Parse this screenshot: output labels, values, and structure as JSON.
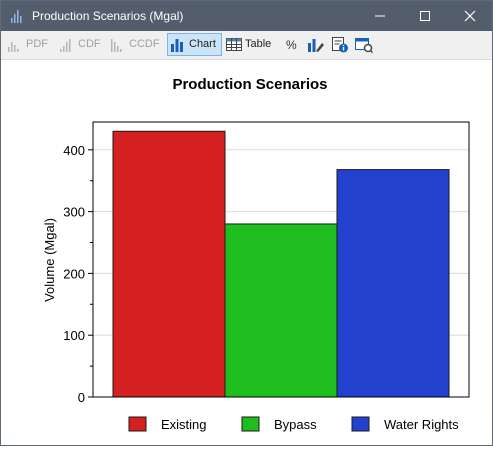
{
  "window": {
    "title": "Production Scenarios (Mgal)"
  },
  "toolbar": {
    "items": [
      {
        "label": "PDF",
        "icon": "pdf-chart-icon",
        "enabled": false
      },
      {
        "label": "CDF",
        "icon": "cdf-chart-icon",
        "enabled": false
      },
      {
        "label": "CCDF",
        "icon": "ccdf-chart-icon",
        "enabled": false
      },
      {
        "label": "Chart",
        "icon": "bar-chart-icon",
        "enabled": true,
        "active": true
      },
      {
        "label": "Table",
        "icon": "table-icon",
        "enabled": true
      },
      {
        "label": "",
        "icon": "percent-icon",
        "enabled": true
      },
      {
        "label": "",
        "icon": "chart-properties-icon",
        "enabled": true
      },
      {
        "label": "",
        "icon": "info-icon",
        "enabled": true
      },
      {
        "label": "",
        "icon": "settings-window-icon",
        "enabled": true
      }
    ]
  },
  "chart_data": {
    "type": "bar",
    "title": "Production Scenarios",
    "xlabel": "",
    "ylabel": "Volume (Mgal)",
    "categories": [
      "Existing",
      "Bypass",
      "Water Rights"
    ],
    "values": [
      430,
      280,
      368
    ],
    "colors": [
      "#d42020",
      "#1fbe1f",
      "#2241cf"
    ],
    "ylim": [
      0,
      445
    ],
    "yticks": [
      0,
      100,
      200,
      300,
      400
    ],
    "grid": true,
    "legend": "bottom"
  }
}
